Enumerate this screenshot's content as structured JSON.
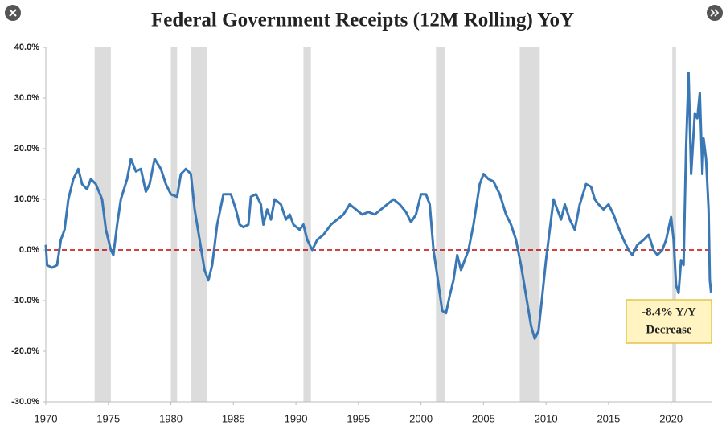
{
  "chart_data": {
    "type": "line",
    "title": "Federal Government Receipts (12M Rolling) YoY",
    "x": [
      1970,
      1970.1,
      1970.5,
      1970.9,
      1971.2,
      1971.5,
      1971.8,
      1972.2,
      1972.6,
      1972.9,
      1973.3,
      1973.6,
      1974,
      1974.5,
      1974.8,
      1975.2,
      1975.4,
      1975.7,
      1976,
      1976.5,
      1976.8,
      1977.2,
      1977.6,
      1978,
      1978.3,
      1978.7,
      1979.2,
      1979.6,
      1980,
      1980.5,
      1980.8,
      1981.2,
      1981.6,
      1981.9,
      1982.3,
      1982.7,
      1983,
      1983.3,
      1983.7,
      1984.2,
      1984.8,
      1985.2,
      1985.5,
      1985.8,
      1986.2,
      1986.4,
      1986.8,
      1987.2,
      1987.4,
      1987.7,
      1988,
      1988.3,
      1988.8,
      1989.2,
      1989.5,
      1989.8,
      1990.3,
      1990.6,
      1990.9,
      1991.3,
      1991.7,
      1992.2,
      1992.8,
      1993.3,
      1993.8,
      1994.3,
      1994.8,
      1995.3,
      1995.8,
      1996.3,
      1996.8,
      1997.3,
      1997.8,
      1998.3,
      1998.8,
      1999.2,
      1999.6,
      2000,
      2000.4,
      2000.7,
      2001,
      2001.3,
      2001.7,
      2002,
      2002.3,
      2002.6,
      2002.9,
      2003.2,
      2003.5,
      2003.8,
      2004.2,
      2004.7,
      2005,
      2005.4,
      2005.8,
      2006.3,
      2006.8,
      2007.2,
      2007.6,
      2008,
      2008.4,
      2008.8,
      2009.1,
      2009.4,
      2009.7,
      2010,
      2010.3,
      2010.6,
      2010.9,
      2011.2,
      2011.5,
      2011.9,
      2012.3,
      2012.7,
      2013.2,
      2013.6,
      2013.9,
      2014.2,
      2014.6,
      2015,
      2015.4,
      2015.7,
      2016.2,
      2016.6,
      2016.9,
      2017.3,
      2017.8,
      2018.2,
      2018.6,
      2018.9,
      2019.3,
      2019.6,
      2020,
      2020.2,
      2020.4,
      2020.6,
      2020.8,
      2021,
      2021.2,
      2021.4,
      2021.6,
      2021.9,
      2022.1,
      2022.3,
      2022.5,
      2022.6,
      2022.8,
      2023,
      2023.1,
      2023.2
    ],
    "series": [
      {
        "color": "#3a78b5",
        "values": [
          1,
          -3,
          -3.5,
          -3,
          2,
          4,
          10,
          14,
          16,
          13,
          12,
          14,
          13,
          10,
          4,
          0,
          -1,
          5,
          10,
          14,
          18,
          15.5,
          16,
          11.5,
          13,
          18,
          16,
          13,
          11,
          10.5,
          15,
          16,
          15,
          8,
          2,
          -4,
          -6,
          -3,
          5,
          11,
          11,
          8,
          5,
          4.5,
          5,
          10.5,
          11,
          9,
          5,
          8,
          6,
          10,
          9,
          6,
          7,
          5,
          4,
          5,
          2,
          0,
          2,
          3,
          5,
          6,
          7,
          9,
          8,
          7,
          7.5,
          7,
          8,
          9,
          10,
          9,
          7.5,
          5.5,
          7,
          11,
          11,
          9,
          0,
          -5,
          -12,
          -12.5,
          -9,
          -6,
          -1,
          -4,
          -2,
          0,
          5,
          13,
          15,
          14,
          13.5,
          11,
          7,
          5,
          2,
          -3,
          -9,
          -15,
          -17.5,
          -16,
          -9,
          -2,
          4,
          10,
          8,
          6,
          9,
          6,
          4,
          9,
          13,
          12.5,
          10,
          9,
          8,
          9,
          7,
          5,
          2,
          0,
          -1,
          1,
          2,
          3,
          0,
          -1,
          0,
          2,
          6.5,
          2,
          -7,
          -8.5,
          -2,
          -3,
          20,
          35,
          15,
          27,
          26,
          31,
          15,
          22,
          18,
          8,
          -6,
          -8.4
        ]
      }
    ],
    "xlim": [
      1970,
      2023.3
    ],
    "ylim": [
      -30,
      40
    ],
    "xticks": [
      1970,
      1975,
      1980,
      1985,
      1990,
      1995,
      2000,
      2005,
      2010,
      2015,
      2020
    ],
    "yticks": [
      {
        "value": -30,
        "label": "-30.0%"
      },
      {
        "value": -20,
        "label": "-20.0%"
      },
      {
        "value": -10,
        "label": "-10.0%"
      },
      {
        "value": 0,
        "label": "0.0%"
      },
      {
        "value": 10,
        "label": "10.0%"
      },
      {
        "value": 20,
        "label": "20.0%"
      },
      {
        "value": 30,
        "label": "30.0%"
      },
      {
        "value": 40,
        "label": "40.0%"
      }
    ],
    "shaded_ranges": [
      [
        1973.9,
        1975.2
      ],
      [
        1980,
        1980.5
      ],
      [
        1981.6,
        1982.9
      ],
      [
        1990.6,
        1991.2
      ],
      [
        2001.2,
        2001.9
      ],
      [
        2007.9,
        2009.5
      ],
      [
        2020.1,
        2020.4
      ]
    ],
    "shade_color": "#dcdcdc",
    "reference_line": {
      "value": 0,
      "color": "#c00000"
    },
    "annotation": [
      "-8.4% Y/Y",
      "Decrease"
    ]
  }
}
